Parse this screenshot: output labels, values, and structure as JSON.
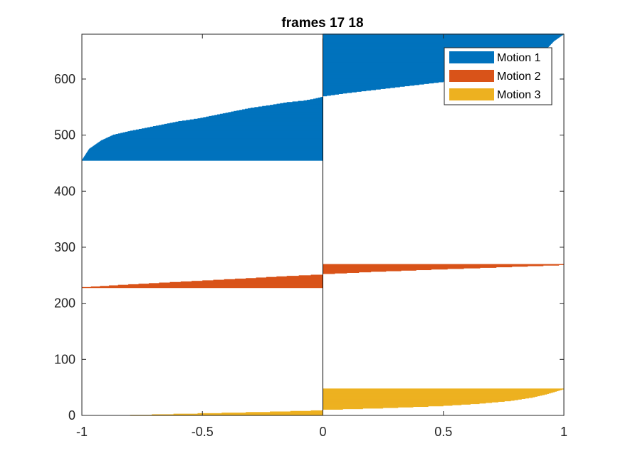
{
  "chart_data": {
    "type": "bar",
    "orientation": "horizontal",
    "title": "frames 17 18",
    "xlabel": "",
    "ylabel": "",
    "xlim": [
      -1,
      1
    ],
    "ylim": [
      0,
      680
    ],
    "xticks": [
      -1,
      -0.5,
      0,
      0.5,
      1
    ],
    "xtick_labels": [
      "-1",
      "-0.5",
      "0",
      "0.5",
      "1"
    ],
    "yticks": [
      0,
      100,
      200,
      300,
      400,
      500,
      600
    ],
    "ytick_labels": [
      "0",
      "100",
      "200",
      "300",
      "400",
      "500",
      "600"
    ],
    "grid": false,
    "legend_position": "top-right",
    "series": [
      {
        "name": "Motion 1",
        "color": "#0072BD",
        "profile": [
          [
            455,
            -1.0
          ],
          [
            475,
            -0.97
          ],
          [
            490,
            -0.92
          ],
          [
            500,
            -0.87
          ],
          [
            507,
            -0.8
          ],
          [
            512,
            -0.74
          ],
          [
            518,
            -0.67
          ],
          [
            524,
            -0.6
          ],
          [
            529,
            -0.52
          ],
          [
            535,
            -0.45
          ],
          [
            542,
            -0.37
          ],
          [
            548,
            -0.3
          ],
          [
            553,
            -0.22
          ],
          [
            558,
            -0.15
          ],
          [
            561,
            -0.08
          ],
          [
            564,
            -0.04
          ],
          [
            568,
            0.0
          ],
          [
            569,
            0.0
          ],
          [
            575,
            0.1
          ],
          [
            580,
            0.2
          ],
          [
            585,
            0.3
          ],
          [
            590,
            0.4
          ],
          [
            595,
            0.5
          ],
          [
            600,
            0.6
          ],
          [
            605,
            0.68
          ],
          [
            610,
            0.75
          ],
          [
            620,
            0.82
          ],
          [
            635,
            0.88
          ],
          [
            650,
            0.92
          ],
          [
            668,
            0.96
          ],
          [
            680,
            1.0
          ]
        ]
      },
      {
        "name": "Motion 2",
        "color": "#D95319",
        "profile": [
          [
            228,
            -1.0
          ],
          [
            232,
            -0.85
          ],
          [
            236,
            -0.68
          ],
          [
            240,
            -0.5
          ],
          [
            244,
            -0.32
          ],
          [
            248,
            -0.15
          ],
          [
            250,
            -0.05
          ],
          [
            251,
            0.0
          ],
          [
            252,
            0.0
          ],
          [
            256,
            0.2
          ],
          [
            260,
            0.45
          ],
          [
            264,
            0.72
          ],
          [
            268,
            0.98
          ],
          [
            269,
            1.0
          ]
        ]
      },
      {
        "name": "Motion 3",
        "color": "#EDB120",
        "profile": [
          [
            0,
            -0.8
          ],
          [
            2,
            -0.62
          ],
          [
            4,
            -0.42
          ],
          [
            6,
            -0.22
          ],
          [
            8,
            -0.05
          ],
          [
            9,
            0.0
          ],
          [
            10,
            0.0
          ],
          [
            13,
            0.25
          ],
          [
            17,
            0.5
          ],
          [
            21,
            0.65
          ],
          [
            26,
            0.78
          ],
          [
            32,
            0.87
          ],
          [
            38,
            0.93
          ],
          [
            43,
            0.97
          ],
          [
            47,
            1.0
          ]
        ]
      }
    ]
  }
}
